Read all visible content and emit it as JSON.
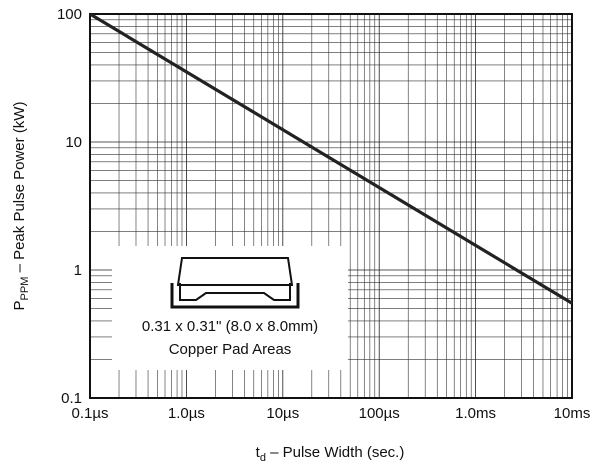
{
  "chart_data": {
    "type": "line",
    "xlabel": {
      "main": "t",
      "sub": "d",
      "rest": " – Pulse Width (sec.)"
    },
    "ylabel": {
      "main": "P",
      "sub": "PPM",
      "rest": " – Peak Pulse Power (kW)"
    },
    "xlog": true,
    "ylog": true,
    "grid": true,
    "minor_grid": true,
    "xlim": [
      1e-07,
      0.01
    ],
    "ylim": [
      0.1,
      100
    ],
    "xticks": [
      {
        "value": 1e-07,
        "label": "0.1µs"
      },
      {
        "value": 1e-06,
        "label": "1.0µs"
      },
      {
        "value": 1e-05,
        "label": "10µs"
      },
      {
        "value": 0.0001,
        "label": "100µs"
      },
      {
        "value": 0.001,
        "label": "1.0ms"
      },
      {
        "value": 0.01,
        "label": "10ms"
      }
    ],
    "yticks": [
      0.1,
      1,
      10,
      100
    ],
    "series": [
      {
        "color": "#222222",
        "x": [
          1e-07,
          0.01
        ],
        "values": [
          100,
          0.55
        ]
      }
    ],
    "inset": {
      "line1": "0.31 x 0.31\" (8.0 x 8.0mm)",
      "line2": "Copper Pad Areas"
    }
  }
}
